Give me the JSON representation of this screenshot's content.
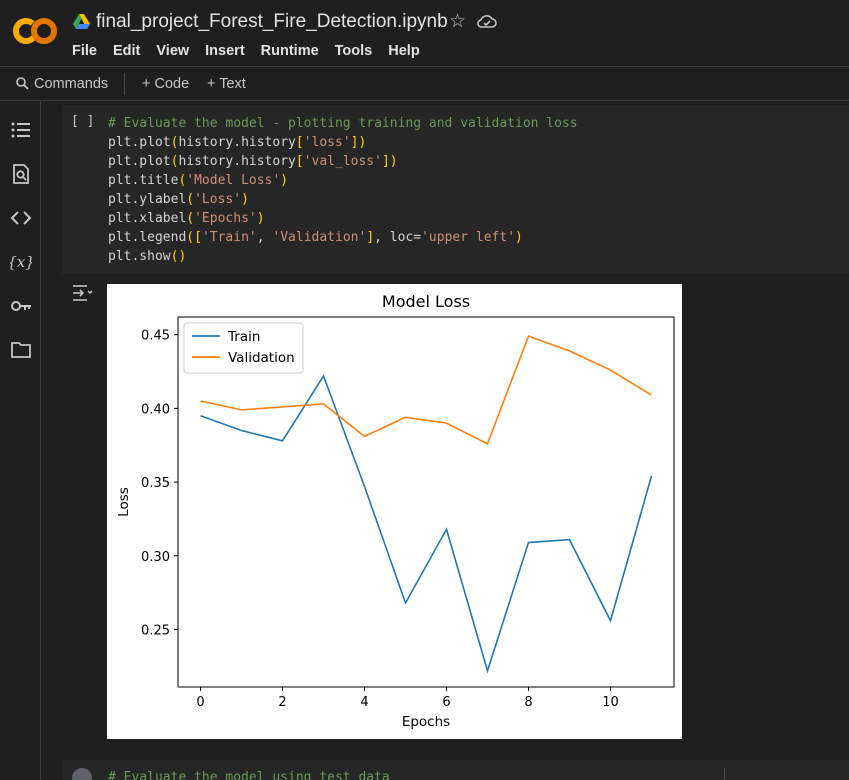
{
  "header": {
    "title": "final_project_Forest_Fire_Detection.ipynb",
    "logo_text": "CO",
    "menu": [
      "File",
      "Edit",
      "View",
      "Insert",
      "Runtime",
      "Tools",
      "Help"
    ]
  },
  "toolbar": {
    "commands_label": "Commands",
    "code_label": "+ Code",
    "text_label": "+ Text"
  },
  "sidebar": {
    "icons": [
      "table-of-contents-icon",
      "find-replace-icon",
      "code-snippets-icon",
      "variables-icon",
      "secrets-key-icon",
      "files-folder-icon"
    ]
  },
  "cell": {
    "run_label": "[ ]",
    "lines": [
      {
        "type": "comment",
        "text": "# Evaluate the model - plotting training and validation loss"
      },
      {
        "type": "code",
        "parts": [
          "plt.plot",
          "(",
          "history.history",
          "[",
          "'loss'",
          "]",
          ")"
        ]
      },
      {
        "type": "code",
        "parts": [
          "plt.plot",
          "(",
          "history.history",
          "[",
          "'val_loss'",
          "]",
          ")"
        ]
      },
      {
        "type": "code",
        "parts": [
          "plt.title",
          "(",
          "'Model Loss'",
          ")"
        ]
      },
      {
        "type": "code",
        "parts": [
          "plt.ylabel",
          "(",
          "'Loss'",
          ")"
        ]
      },
      {
        "type": "code",
        "parts": [
          "plt.xlabel",
          "(",
          "'Epochs'",
          ")"
        ]
      },
      {
        "type": "legend"
      },
      {
        "type": "code",
        "parts": [
          "plt.show",
          "()"
        ]
      }
    ],
    "legend_line": [
      "plt.legend",
      "(",
      "[",
      "'Train'",
      ", ",
      "'Validation'",
      "]",
      ", loc=",
      "'upper left'",
      ")"
    ]
  },
  "next_cell": {
    "code": "# Evaluate the model using test data"
  },
  "colors": {
    "train": "#1f77b4",
    "validation": "#ff7f0e"
  },
  "chart_data": {
    "type": "line",
    "title": "Model Loss",
    "xlabel": "Epochs",
    "ylabel": "Loss",
    "x": [
      0,
      1,
      2,
      3,
      4,
      5,
      6,
      7,
      8,
      9,
      10,
      11
    ],
    "xticks": [
      0,
      2,
      4,
      6,
      8,
      10
    ],
    "yticks": [
      0.25,
      0.3,
      0.35,
      0.4,
      0.45
    ],
    "xlim": [
      -0.55,
      11.55
    ],
    "ylim": [
      0.211,
      0.462
    ],
    "legend_position": "upper left",
    "grid": false,
    "series": [
      {
        "name": "Train",
        "values": [
          0.395,
          0.385,
          0.378,
          0.422,
          0.347,
          0.268,
          0.318,
          0.222,
          0.309,
          0.311,
          0.256,
          0.354
        ]
      },
      {
        "name": "Validation",
        "values": [
          0.405,
          0.399,
          0.401,
          0.403,
          0.381,
          0.394,
          0.39,
          0.376,
          0.449,
          0.439,
          0.426,
          0.409
        ]
      }
    ]
  }
}
